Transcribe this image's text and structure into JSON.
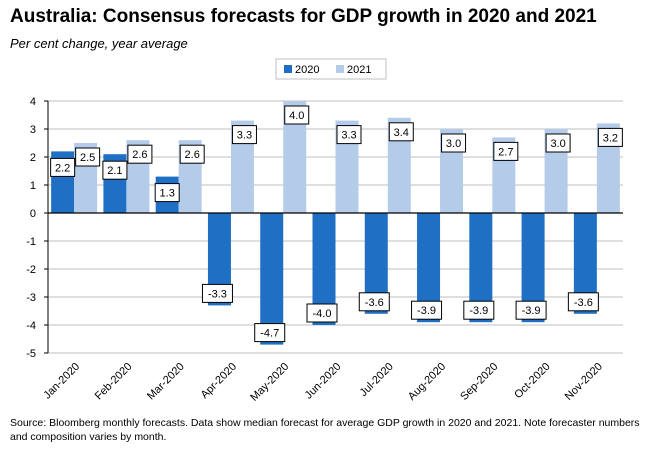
{
  "title": "Australia: Consensus forecasts for GDP growth in 2020 and 2021",
  "subtitle": "Per cent change, year average",
  "source": "Source: Bloomberg monthly forecasts.  Data show median forecast for average GDP growth in 2020 and 2021.  Note forecaster numbers and composition varies by month.",
  "chart_data": {
    "type": "bar",
    "title": "Australia: Consensus forecasts for GDP growth in 2020 and 2021",
    "subtitle": "Per cent change, year average",
    "xlabel": "",
    "ylabel": "",
    "ylim": [
      -5,
      4
    ],
    "yticks": [
      4,
      3,
      2,
      1,
      0,
      -1,
      -2,
      -3,
      -4,
      -5
    ],
    "grid": true,
    "legend": "top-center",
    "categories": [
      "Jan-2020",
      "Feb-2020",
      "Mar-2020",
      "Apr-2020",
      "May-2020",
      "Jun-2020",
      "Jul-2020",
      "Aug-2020",
      "Sep-2020",
      "Oct-2020",
      "Nov-2020"
    ],
    "series": [
      {
        "name": "2020",
        "color": "#1f6fc5",
        "values": [
          2.2,
          2.1,
          1.3,
          -3.3,
          -4.7,
          -4.0,
          -3.6,
          -3.9,
          -3.9,
          -3.9,
          -3.6
        ],
        "labels": [
          "2.2",
          "2.1",
          "1.3",
          "-3.3",
          "-4.7",
          "-4.0",
          "-3.6",
          "-3.9",
          "-3.9",
          "-3.9",
          "-3.6"
        ]
      },
      {
        "name": "2021",
        "color": "#b4cbe9",
        "values": [
          2.5,
          2.6,
          2.6,
          3.3,
          4.0,
          3.3,
          3.4,
          3.0,
          2.7,
          3.0,
          3.2
        ],
        "labels": [
          "2.5",
          "2.6",
          "2.6",
          "3.3",
          "4.0",
          "3.3",
          "3.4",
          "3.0",
          "2.7",
          "3.0",
          "3.2"
        ]
      }
    ]
  }
}
